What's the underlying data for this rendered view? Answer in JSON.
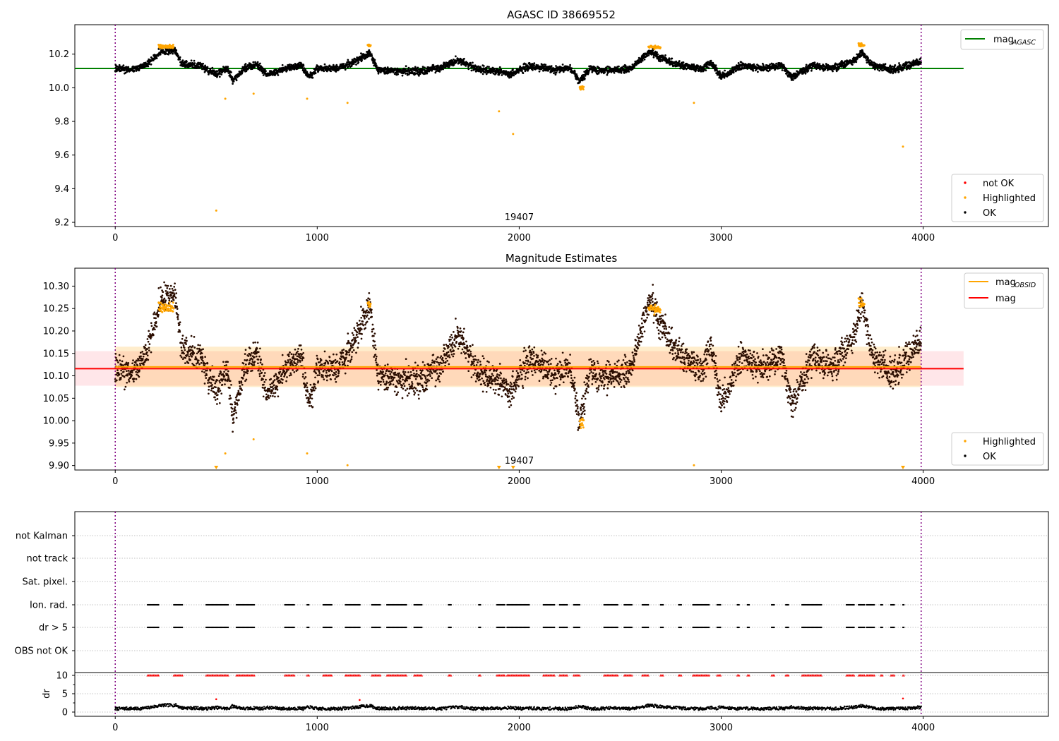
{
  "chart_data": [
    {
      "type": "scatter",
      "title": "AGASC ID 38669552",
      "xlim": [
        -200,
        4620
      ],
      "ylim": [
        9.175,
        10.375
      ],
      "xticks": [
        0,
        1000,
        2000,
        3000,
        4000
      ],
      "yticks": [
        9.2,
        9.4,
        9.6,
        9.8,
        10.0,
        10.2
      ],
      "ytick_labels": [
        "9.2",
        "9.4",
        "9.6",
        "9.8",
        "10.0",
        "10.2"
      ],
      "obsid_label": {
        "text": "19407",
        "x": 2000
      },
      "vlines": [
        0,
        3990
      ],
      "line": {
        "name": "mag",
        "subscript": "AGASC",
        "y": 10.115,
        "x": [
          -200,
          4200
        ],
        "color": "#008000"
      },
      "base": {
        "mean": 10.115,
        "noise": 0.022
      },
      "trend_knots": [
        [
          0,
          0.0
        ],
        [
          80,
          -0.01
        ],
        [
          150,
          0.02
        ],
        [
          230,
          0.12
        ],
        [
          300,
          0.12
        ],
        [
          330,
          0.03
        ],
        [
          420,
          0.02
        ],
        [
          500,
          -0.04
        ],
        [
          560,
          0.0
        ],
        [
          580,
          -0.09
        ],
        [
          640,
          0.0
        ],
        [
          700,
          0.03
        ],
        [
          750,
          -0.04
        ],
        [
          850,
          0.0
        ],
        [
          920,
          0.02
        ],
        [
          960,
          -0.06
        ],
        [
          1000,
          0.0
        ],
        [
          1100,
          0.0
        ],
        [
          1180,
          0.04
        ],
        [
          1260,
          0.11
        ],
        [
          1300,
          -0.01
        ],
        [
          1400,
          -0.02
        ],
        [
          1500,
          -0.02
        ],
        [
          1600,
          0.0
        ],
        [
          1700,
          0.06
        ],
        [
          1800,
          -0.01
        ],
        [
          1900,
          -0.02
        ],
        [
          1950,
          -0.04
        ],
        [
          2050,
          0.02
        ],
        [
          2150,
          -0.01
        ],
        [
          2250,
          0.0
        ],
        [
          2300,
          -0.09
        ],
        [
          2350,
          0.0
        ],
        [
          2450,
          -0.02
        ],
        [
          2550,
          0.0
        ],
        [
          2650,
          0.12
        ],
        [
          2700,
          0.07
        ],
        [
          2800,
          0.02
        ],
        [
          2900,
          0.0
        ],
        [
          2950,
          0.04
        ],
        [
          3000,
          -0.06
        ],
        [
          3100,
          0.02
        ],
        [
          3200,
          0.0
        ],
        [
          3300,
          0.02
        ],
        [
          3350,
          -0.06
        ],
        [
          3450,
          0.02
        ],
        [
          3550,
          0.0
        ],
        [
          3650,
          0.05
        ],
        [
          3700,
          0.11
        ],
        [
          3750,
          0.02
        ],
        [
          3850,
          -0.01
        ],
        [
          3950,
          0.03
        ],
        [
          3990,
          0.05
        ]
      ],
      "highlight_clusters": [
        [
          215,
          290,
          10.245
        ],
        [
          1250,
          1265,
          10.25
        ],
        [
          2640,
          2700,
          10.24
        ],
        [
          3680,
          3710,
          10.255
        ],
        [
          2300,
          2320,
          10.0
        ]
      ],
      "highlight_points": [
        [
          500,
          9.27
        ],
        [
          545,
          9.935
        ],
        [
          685,
          9.965
        ],
        [
          950,
          9.935
        ],
        [
          1150,
          9.91
        ],
        [
          1900,
          9.86
        ],
        [
          1970,
          9.725
        ],
        [
          2865,
          9.91
        ],
        [
          3900,
          9.65
        ]
      ],
      "legend_line": {
        "label": "mag",
        "sub": "AGASC",
        "position": "top-right"
      },
      "legend_points": {
        "position": "bottom-right",
        "entries": [
          {
            "label": "not OK",
            "color": "#ff0000"
          },
          {
            "label": "Highlighted",
            "color": "#ffa500"
          },
          {
            "label": "OK",
            "color": "#000000"
          }
        ]
      }
    },
    {
      "type": "scatter",
      "title": "Magnitude Estimates",
      "xlim": [
        -200,
        4620
      ],
      "ylim": [
        9.89,
        10.34
      ],
      "xticks": [
        0,
        1000,
        2000,
        3000,
        4000
      ],
      "yticks": [
        9.9,
        9.95,
        10.0,
        10.05,
        10.1,
        10.15,
        10.2,
        10.25,
        10.3
      ],
      "ytick_labels": [
        "9.90",
        "9.95",
        "10.00",
        "10.05",
        "10.10",
        "10.15",
        "10.20",
        "10.25",
        "10.30"
      ],
      "obsid_label": {
        "text": "19407",
        "x": 2000
      },
      "vlines": [
        0,
        3990
      ],
      "bands": [
        {
          "y": [
            10.078,
            10.155
          ],
          "x": [
            -200,
            4200
          ],
          "color": "#ffb6c1",
          "opacity": 0.35
        },
        {
          "y": [
            10.075,
            10.165
          ],
          "x": [
            0,
            3990
          ],
          "color": "#ffa500",
          "opacity": 0.2
        }
      ],
      "lines": [
        {
          "name": "mag",
          "subscript": "OBSID",
          "y": 10.12,
          "x": [
            0,
            3990
          ],
          "color": "#ffa500"
        },
        {
          "name": "mag",
          "y": 10.116,
          "x": [
            -200,
            4200
          ],
          "color": "#ff0000"
        }
      ],
      "clipped_markers": [
        500,
        1900,
        1970,
        3900
      ],
      "legend_line": {
        "position": "top-right",
        "entries": [
          {
            "label": "mag",
            "sub": "OBSID",
            "color": "#ffa500"
          },
          {
            "label": "mag",
            "sub": "",
            "color": "#ff0000"
          }
        ]
      },
      "legend_points": {
        "position": "bottom-right",
        "entries": [
          {
            "label": "Highlighted",
            "color": "#ffa500"
          },
          {
            "label": "OK",
            "color": "#000000"
          }
        ]
      }
    },
    {
      "type": "scatter",
      "title": "",
      "xlim": [
        -200,
        4620
      ],
      "xticks": [
        0,
        1000,
        2000,
        3000,
        4000
      ],
      "categories": [
        "not Kalman",
        "not track",
        "Sat. pixel.",
        "Ion. rad.",
        "dr > 5",
        "OBS not OK"
      ],
      "flagged_ranges": [
        [
          160,
          215
        ],
        [
          290,
          335
        ],
        [
          450,
          560
        ],
        [
          600,
          690
        ],
        [
          840,
          890
        ],
        [
          950,
          960
        ],
        [
          1030,
          1075
        ],
        [
          1140,
          1215
        ],
        [
          1270,
          1315
        ],
        [
          1345,
          1445
        ],
        [
          1480,
          1520
        ],
        [
          1650,
          1665
        ],
        [
          1800,
          1810
        ],
        [
          1890,
          1930
        ],
        [
          1940,
          2050
        ],
        [
          2120,
          2175
        ],
        [
          2200,
          2240
        ],
        [
          2270,
          2300
        ],
        [
          2420,
          2490
        ],
        [
          2520,
          2560
        ],
        [
          2610,
          2640
        ],
        [
          2700,
          2715
        ],
        [
          2790,
          2805
        ],
        [
          2860,
          2940
        ],
        [
          2980,
          3000
        ],
        [
          3080,
          3090
        ],
        [
          3130,
          3140
        ],
        [
          3250,
          3265
        ],
        [
          3320,
          3335
        ],
        [
          3400,
          3500
        ],
        [
          3620,
          3660
        ],
        [
          3680,
          3710
        ],
        [
          3720,
          3760
        ],
        [
          3790,
          3800
        ],
        [
          3840,
          3860
        ],
        [
          3900,
          3905
        ]
      ],
      "red_spikes": [
        [
          500,
          3.5
        ],
        [
          1210,
          3.3
        ],
        [
          3900,
          3.7
        ]
      ],
      "dr": {
        "ylabel": "dr",
        "ylim": [
          -0.6,
          10.5
        ],
        "yticks": [
          0,
          5,
          10
        ],
        "ytick_labels": [
          "0",
          "5",
          "10"
        ],
        "clip_value": 10
      }
    }
  ]
}
